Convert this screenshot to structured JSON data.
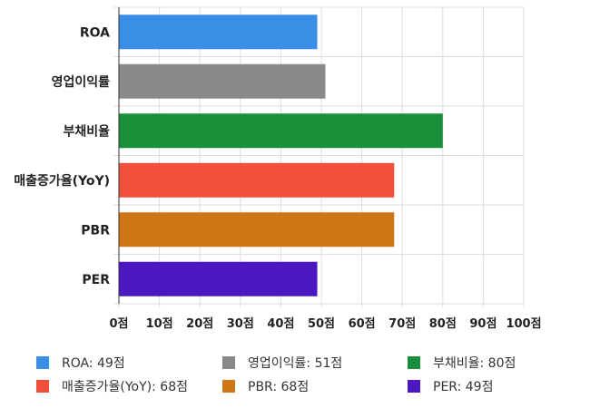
{
  "chart_data": {
    "type": "bar",
    "orientation": "horizontal",
    "categories": [
      "ROA",
      "영업이익률",
      "부채비율",
      "매출증가율(YoY)",
      "PBR",
      "PER"
    ],
    "values": [
      49,
      51,
      80,
      68,
      68,
      49
    ],
    "colors": [
      "#3b8ee6",
      "#8a8a8a",
      "#1a8f3a",
      "#ef4f3b",
      "#cf7516",
      "#4b17c2"
    ],
    "xlim": [
      0,
      100
    ],
    "xticks": [
      "0점",
      "10점",
      "20점",
      "30점",
      "40점",
      "50점",
      "60점",
      "70점",
      "80점",
      "90점",
      "100점"
    ],
    "grid": true,
    "legend_position": "bottom",
    "legend": [
      {
        "label": "ROA: 49점",
        "color": "#3b8ee6"
      },
      {
        "label": "영업이익률: 51점",
        "color": "#8a8a8a"
      },
      {
        "label": "부채비율: 80점",
        "color": "#1a8f3a"
      },
      {
        "label": "매출증가율(YoY): 68점",
        "color": "#ef4f3b"
      },
      {
        "label": "PBR: 68점",
        "color": "#cf7516"
      },
      {
        "label": "PER: 49점",
        "color": "#4b17c2"
      }
    ]
  }
}
